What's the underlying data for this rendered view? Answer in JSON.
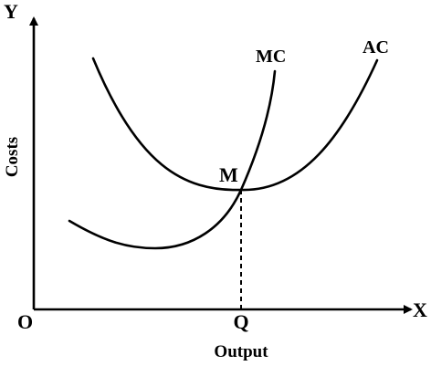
{
  "diagram": {
    "y_axis_letter": "Y",
    "x_axis_letter": "X",
    "origin_label": "O",
    "y_axis_title": "Costs",
    "x_axis_title": "Output",
    "intersection_label": "M",
    "intersection_x_label": "Q",
    "curves": [
      {
        "name": "MC"
      },
      {
        "name": "AC"
      }
    ]
  }
}
